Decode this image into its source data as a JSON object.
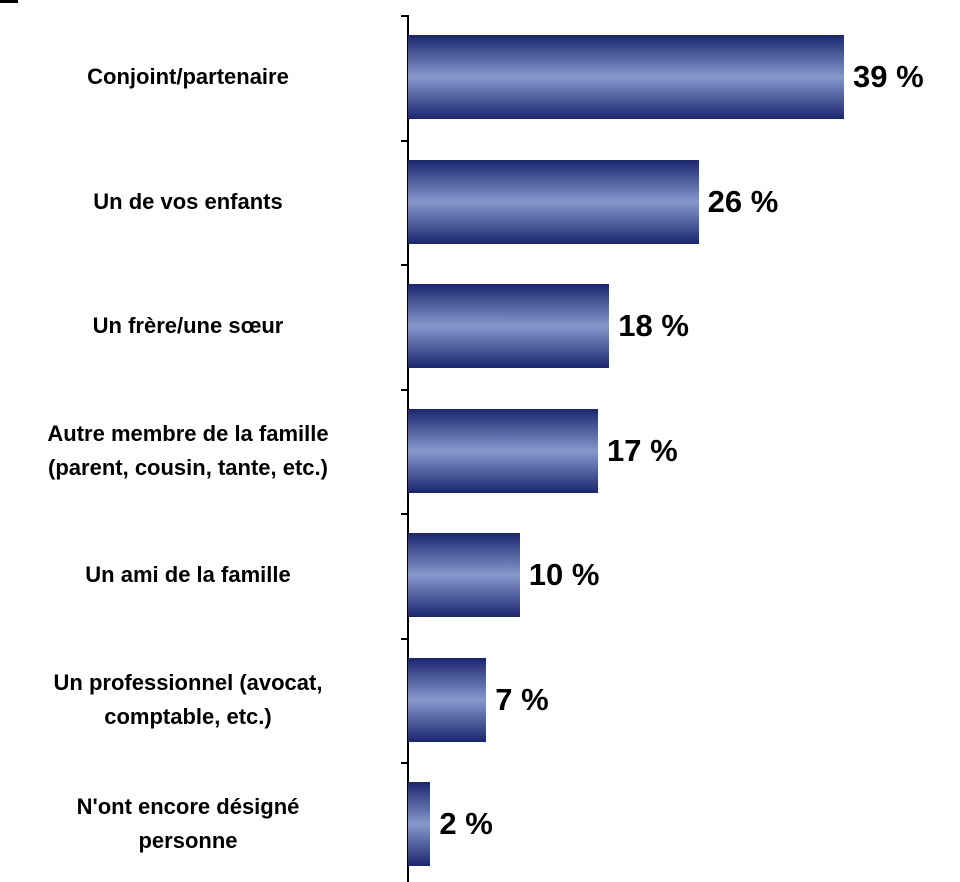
{
  "chart_data": {
    "type": "bar",
    "orientation": "horizontal",
    "categories": [
      "Conjoint/partenaire",
      "Un de vos enfants",
      "Un frère/une sœur",
      "Autre membre de la famille\n(parent, cousin, tante, etc.)",
      "Un ami de la famille",
      "Un professionnel (avocat,\ncomptable, etc.)",
      "N'ont encore désigné\npersonne"
    ],
    "values": [
      39,
      26,
      18,
      17,
      10,
      7,
      2
    ],
    "value_labels": [
      "39 %",
      "26 %",
      "18 %",
      "17 %",
      "10 %",
      "7 %",
      "2 %"
    ]
  }
}
